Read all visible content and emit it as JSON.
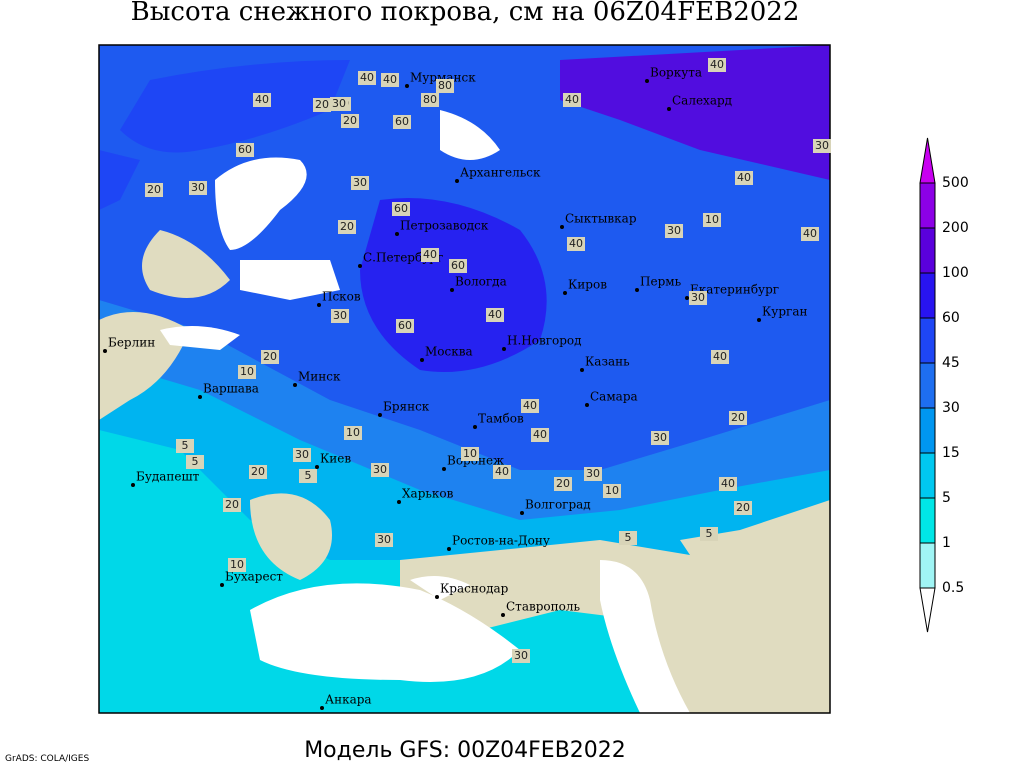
{
  "title": "Высота снежного покрова, см на 06Z04FEB2022",
  "footer": "Модель GFS: 00Z04FEB2022",
  "credit": "GrADS: COLA/IGES",
  "colorbar": {
    "levels": [
      0.5,
      1,
      5,
      15,
      30,
      45,
      60,
      100,
      200,
      500
    ],
    "colors": [
      "#ffffff",
      "#a0f5f5",
      "#00e6e6",
      "#00c8f0",
      "#0096f0",
      "#1e6ef0",
      "#1e46f5",
      "#2814f0",
      "#5a00dc",
      "#8c00e6",
      "#c800f0"
    ]
  },
  "cities": [
    "Мурманск",
    "Воркута",
    "Салехард",
    "Архангельск",
    "Сыктывкар",
    "Петрозаводск",
    "С.Петербург",
    "Вологда",
    "Киров",
    "Пермь",
    "Екатеринбург",
    "Курган",
    "Псков",
    "Берлин",
    "Н.Новгород",
    "Казань",
    "Москва",
    "Минск",
    "Варшава",
    "Брянск",
    "Тамбов",
    "Самара",
    "Киев",
    "Воронеж",
    "Будапешт",
    "Харьков",
    "Волгоград",
    "Ростов-на-Дону",
    "Бухарест",
    "Краснодар",
    "Ставрополь",
    "Анкара"
  ],
  "contour_labels": [
    40,
    40,
    60,
    80,
    80,
    60,
    30,
    20,
    30,
    20,
    60,
    40,
    40,
    40,
    20,
    30,
    60,
    40,
    60,
    20,
    30,
    30,
    40,
    60,
    20,
    10,
    30,
    40,
    40,
    40,
    30,
    30,
    40,
    20,
    30,
    10,
    5,
    5,
    20,
    20,
    10,
    5,
    30,
    40,
    30,
    40,
    10,
    20,
    20,
    40,
    30,
    10,
    5,
    10,
    5,
    30,
    40
  ]
}
